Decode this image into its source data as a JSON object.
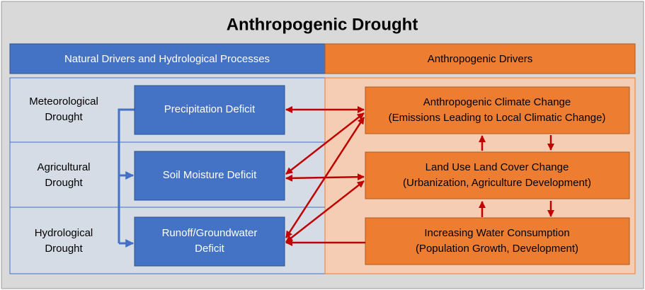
{
  "title": "Anthropogenic Drought",
  "left_header": "Natural Drivers and Hydrological Processes",
  "right_header": "Anthropogenic Drivers",
  "rows": [
    {
      "label": [
        "Meteorological",
        "Drought"
      ],
      "box": [
        "Precipitation Deficit"
      ]
    },
    {
      "label": [
        "Agricultural",
        "Drought"
      ],
      "box": [
        "Soil Moisture Deficit"
      ]
    },
    {
      "label": [
        "Hydrological",
        "Drought"
      ],
      "box": [
        "Runoff/Groundwater",
        "Deficit"
      ]
    }
  ],
  "drivers": [
    [
      "Anthropogenic Climate Change",
      "(Emissions Leading to Local Climatic Change)"
    ],
    [
      "Land Use Land Cover Change",
      "(Urbanization, Agriculture Development)"
    ],
    [
      "Increasing Water Consumption",
      "(Population Growth, Development)"
    ]
  ]
}
